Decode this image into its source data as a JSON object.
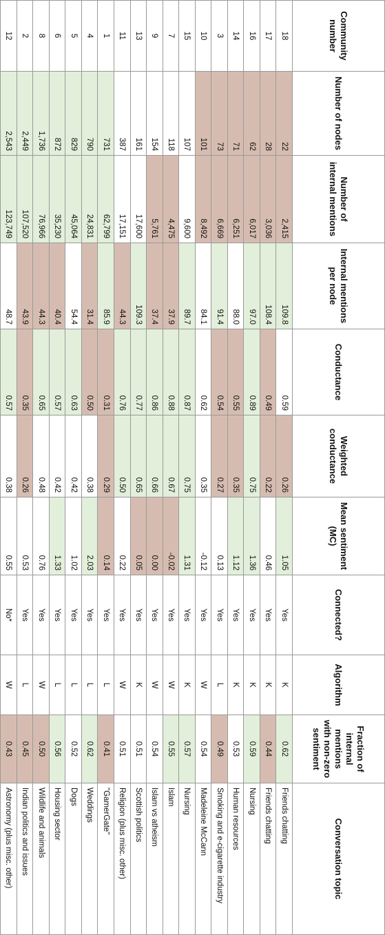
{
  "colors": {
    "green": "#e2efda",
    "brown": "#d6bcb0",
    "white": "#ffffff"
  },
  "columns": [
    "Community number",
    "Number of nodes",
    "Number of internal mentions",
    "Internal mentions per node",
    "Conductance",
    "Weighted conductance",
    "Mean sentiment (MC)",
    "Connected?",
    "Algorithm",
    "Fraction of internal mentions with non-zero sentiment",
    "Conversation topic"
  ],
  "rows": [
    {
      "cells": [
        "18",
        "22",
        "2,415",
        "109.8",
        "0.59",
        "0.26",
        "1.05",
        "Yes",
        "K",
        "0.62",
        "Friends chatting"
      ]
    },
    {
      "cells": [
        "17",
        "28",
        "3,036",
        "108.4",
        "0.49",
        "0.22",
        "0.46",
        "Yes",
        "K",
        "0.44",
        "Friends chatting"
      ]
    },
    {
      "cells": [
        "16",
        "62",
        "6,017",
        "97.0",
        "0.89",
        "0.75",
        "1.36",
        "Yes",
        "K",
        "0.59",
        "Nursing"
      ]
    },
    {
      "cells": [
        "14",
        "71",
        "6,251",
        "88.0",
        "0.55",
        "0.35",
        "1.12",
        "Yes",
        "K",
        "0.53",
        "Human resources"
      ]
    },
    {
      "cells": [
        "3",
        "73",
        "6,669",
        "91.4",
        "0.54",
        "0.27",
        "0.13",
        "Yes",
        "L",
        "0.49",
        "Smoking and e-cigarette industry"
      ]
    },
    {
      "cells": [
        "10",
        "101",
        "8,492",
        "84.1",
        "0.62",
        "0.35",
        "-0.12",
        "Yes",
        "W",
        "0.54",
        "Madeleine McCann"
      ]
    },
    {
      "cells": [
        "15",
        "107",
        "9,600",
        "89.7",
        "0.87",
        "0.75",
        "1.31",
        "Yes",
        "K",
        "0.57",
        "Nursing"
      ]
    },
    {
      "cells": [
        "7",
        "118",
        "4,475",
        "37.9",
        "0.88",
        "0.67",
        "-0.02",
        "Yes",
        "W",
        "0.55",
        "Islam"
      ]
    },
    {
      "cells": [
        "9",
        "154",
        "5,761",
        "37.4",
        "0.86",
        "0.66",
        "0.00",
        "Yes",
        "W",
        "0.54",
        "Islam vs atheism"
      ]
    },
    {
      "cells": [
        "13",
        "161",
        "17,600",
        "109.3",
        "0.77",
        "0.65",
        "0.05",
        "Yes",
        "K",
        "0.51",
        "Scottish politics"
      ]
    },
    {
      "cells": [
        "11",
        "387",
        "17,151",
        "44.3",
        "0.76",
        "0.50",
        "0.22",
        "Yes",
        "W",
        "0.51",
        "Religion (plus misc. other)"
      ]
    },
    {
      "cells": [
        "1",
        "731",
        "62,799",
        "85.9",
        "0.31",
        "0.29",
        "0.14",
        "Yes",
        "L",
        "0.41",
        "\"GamerGate\""
      ]
    },
    {
      "cells": [
        "4",
        "790",
        "24,831",
        "31.4",
        "0.50",
        "0.38",
        "2.03",
        "Yes",
        "L",
        "0.62",
        "Weddings"
      ]
    },
    {
      "cells": [
        "5",
        "829",
        "45,064",
        "54.4",
        "0.63",
        "0.42",
        "1.02",
        "Yes",
        "L",
        "0.52",
        "Dogs"
      ]
    },
    {
      "cells": [
        "6",
        "872",
        "35,230",
        "40.4",
        "0.57",
        "0.42",
        "1.33",
        "Yes",
        "L",
        "0.56",
        "Housing sector"
      ]
    },
    {
      "cells": [
        "8",
        "1,736",
        "76,966",
        "44.3",
        "0.65",
        "0.48",
        "0.76",
        "Yes",
        "W",
        "0.50",
        "Wildlife and animals"
      ]
    },
    {
      "cells": [
        "2",
        "2,449",
        "107,520",
        "43.9",
        "0.35",
        "0.26",
        "0.53",
        "Yes",
        "L",
        "0.45",
        "Indian politics and issues"
      ]
    },
    {
      "cells": [
        "12",
        "2,543",
        "123,749",
        "48.7",
        "0.57",
        "0.38",
        "0.55",
        "No*",
        "W",
        "0.43",
        "Astronomy (plus misc. other)"
      ]
    }
  ],
  "shading": [
    [
      "w",
      "b",
      "b",
      "g",
      "w",
      "b",
      "g",
      "w",
      "w",
      "g",
      "w"
    ],
    [
      "w",
      "b",
      "b",
      "g",
      "b",
      "b",
      "w",
      "w",
      "w",
      "b",
      "w"
    ],
    [
      "w",
      "b",
      "b",
      "g",
      "g",
      "g",
      "g",
      "w",
      "w",
      "g",
      "w"
    ],
    [
      "w",
      "b",
      "b",
      "w",
      "b",
      "b",
      "g",
      "w",
      "w",
      "w",
      "w"
    ],
    [
      "w",
      "b",
      "b",
      "g",
      "b",
      "b",
      "w",
      "w",
      "w",
      "b",
      "w"
    ],
    [
      "w",
      "b",
      "b",
      "w",
      "w",
      "w",
      "w",
      "w",
      "w",
      "w",
      "w"
    ],
    [
      "w",
      "w",
      "w",
      "g",
      "g",
      "g",
      "g",
      "w",
      "w",
      "g",
      "w"
    ],
    [
      "w",
      "w",
      "b",
      "b",
      "g",
      "g",
      "b",
      "w",
      "w",
      "g",
      "w"
    ],
    [
      "w",
      "w",
      "b",
      "b",
      "g",
      "g",
      "b",
      "w",
      "w",
      "w",
      "w"
    ],
    [
      "w",
      "w",
      "w",
      "g",
      "g",
      "g",
      "b",
      "w",
      "w",
      "w",
      "w"
    ],
    [
      "w",
      "w",
      "w",
      "b",
      "g",
      "g",
      "w",
      "w",
      "w",
      "w",
      "w"
    ],
    [
      "w",
      "g",
      "g",
      "g",
      "b",
      "b",
      "b",
      "w",
      "w",
      "b",
      "w"
    ],
    [
      "w",
      "g",
      "g",
      "b",
      "b",
      "w",
      "g",
      "w",
      "w",
      "g",
      "w"
    ],
    [
      "w",
      "g",
      "g",
      "w",
      "g",
      "w",
      "w",
      "w",
      "w",
      "w",
      "w"
    ],
    [
      "w",
      "g",
      "g",
      "b",
      "g",
      "w",
      "g",
      "w",
      "w",
      "g",
      "w"
    ],
    [
      "w",
      "g",
      "g",
      "b",
      "g",
      "w",
      "w",
      "w",
      "w",
      "b",
      "w"
    ],
    [
      "w",
      "g",
      "g",
      "b",
      "b",
      "b",
      "w",
      "w",
      "w",
      "b",
      "w"
    ],
    [
      "w",
      "g",
      "g",
      "w",
      "g",
      "w",
      "w",
      "w",
      "w",
      "b",
      "w"
    ]
  ]
}
